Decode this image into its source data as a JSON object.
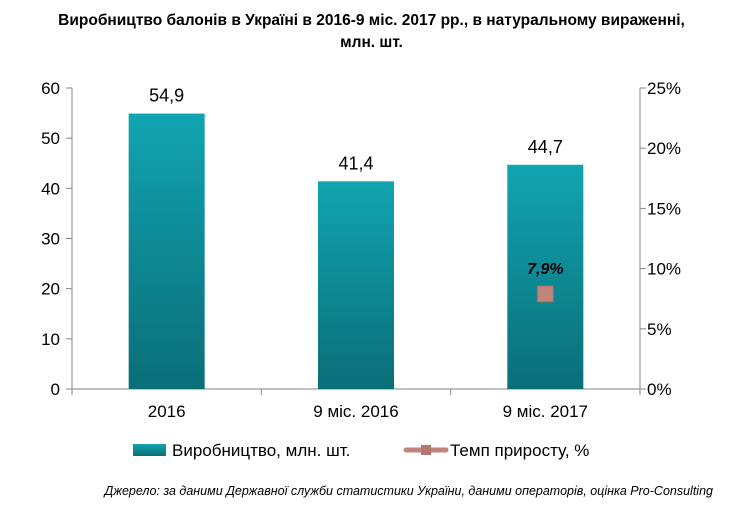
{
  "title_line1": "Виробництво балонів в Україні в 2016-9 міс. 2017 рр., в натуральному вираженні,",
  "title_line2": "млн. шт.",
  "source": "Джерело: за даними Державної служби статистики України, даними операторів, оцінка Pro-Consulting",
  "chart_data": {
    "type": "bar",
    "categories": [
      "2016",
      "9 міс. 2016",
      "9 міс. 2017"
    ],
    "series": [
      {
        "name": "Виробництво, млн. шт.",
        "type": "bar",
        "axis": "left",
        "values": [
          54.9,
          41.4,
          44.7
        ],
        "labels": [
          "54,9",
          "41,4",
          "44,7"
        ],
        "color": "#11a2ae"
      },
      {
        "name": "Темп приросту, %",
        "type": "line",
        "axis": "right",
        "values": [
          null,
          null,
          7.9
        ],
        "labels": [
          "",
          "",
          "7,9%"
        ],
        "color": "#c0847a"
      }
    ],
    "ylim": [
      0,
      60
    ],
    "yticks": [
      "0",
      "10",
      "20",
      "30",
      "40",
      "50",
      "60"
    ],
    "y2lim": [
      0,
      25
    ],
    "y2ticks": [
      "0%",
      "5%",
      "10%",
      "15%",
      "20%",
      "25%"
    ],
    "grid": false,
    "legend": "bottom"
  }
}
